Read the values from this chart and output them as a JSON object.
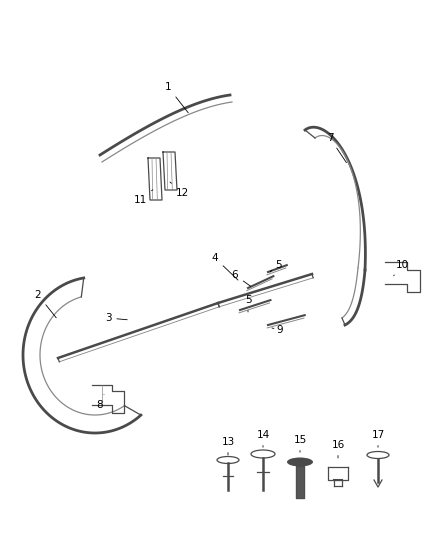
{
  "background_color": "#ffffff",
  "figure_size": [
    4.38,
    5.33
  ],
  "dpi": 100,
  "line_color": "#4a4a4a",
  "line_color_light": "#888888"
}
